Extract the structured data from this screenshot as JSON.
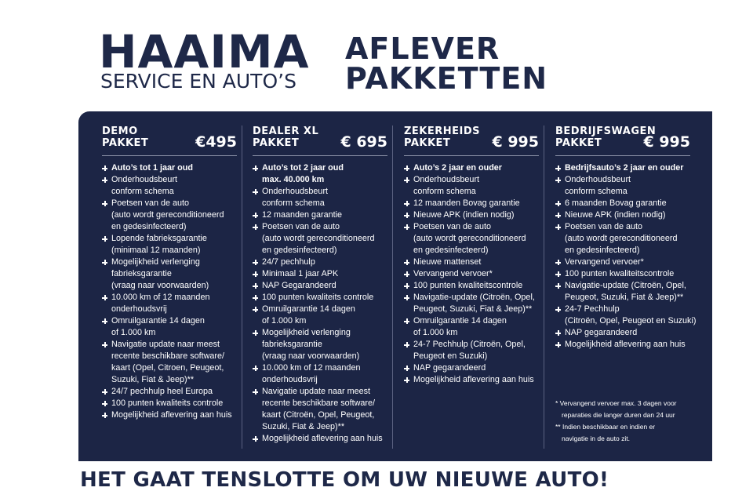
{
  "logo": {
    "name": "HAAIMA",
    "tagline": "SERVICE EN AUTO’S"
  },
  "title": [
    "AFLEVER",
    "PAKKETTEN"
  ],
  "columns": [
    {
      "name": [
        "DEMO",
        "PAKKET"
      ],
      "price": "€495",
      "highlight": [
        "Auto’s tot 1 jaar oud"
      ],
      "items": [
        [
          "Onderhoudsbeurt",
          "conform schema"
        ],
        [
          "Poetsen van de auto",
          "(auto wordt gereconditioneerd",
          "en gedesinfecteerd)"
        ],
        [
          "Lopende fabrieksgarantie",
          "(minimaal 12 maanden)"
        ],
        [
          "Mogelijkheid verlenging",
          "fabrieksgarantie",
          "(vraag naar voorwaarden)"
        ],
        [
          "10.000 km of 12 maanden",
          "onderhoudsvrij"
        ],
        [
          "Omruilgarantie 14 dagen",
          "of 1.000 km"
        ],
        [
          "Navigatie update naar meest",
          "recente beschikbare software/",
          "kaart (Opel, Citroen,  Peugeot,",
          "Suzuki, Fiat & Jeep)**"
        ],
        [
          "24/7 pechhulp heel Europa"
        ],
        [
          "100 punten kwaliteits controle"
        ],
        [
          "Mogelijkheid aflevering aan huis"
        ]
      ]
    },
    {
      "name": [
        "DEALER XL",
        "PAKKET"
      ],
      "price": "€ 695",
      "highlight": [
        "Auto’s tot 2 jaar oud",
        "max. 40.000 km"
      ],
      "items": [
        [
          "Onderhoudsbeurt",
          "conform schema"
        ],
        [
          "12 maanden garantie"
        ],
        [
          "Poetsen van de auto",
          "(auto wordt gereconditioneerd",
          "en gedesinfecteerd)"
        ],
        [
          "24/7 pechhulp"
        ],
        [
          "Minimaal 1 jaar APK"
        ],
        [
          "NAP Gegarandeerd"
        ],
        [
          "100 punten kwaliteits controle"
        ],
        [
          "Omruilgarantie 14 dagen",
          "of 1.000 km"
        ],
        [
          "Mogelijkheid verlenging",
          "fabrieksgarantie",
          "(vraag naar voorwaarden)"
        ],
        [
          "10.000 km of 12 maanden",
          "onderhoudsvrij"
        ],
        [
          "Navigatie update naar meest",
          "recente beschikbare software/",
          "kaart (Citroën, Opel, Peugeot,",
          "Suzuki, Fiat & Jeep)**"
        ],
        [
          "Mogelijkheid aflevering aan huis"
        ]
      ]
    },
    {
      "name": [
        "ZEKERHEIDS",
        "PAKKET"
      ],
      "price": "€ 995",
      "highlight": [
        "Auto’s 2 jaar en ouder"
      ],
      "items": [
        [
          "Onderhoudsbeurt",
          "conform schema"
        ],
        [
          "12 maanden Bovag garantie"
        ],
        [
          "Nieuwe APK (indien nodig)"
        ],
        [
          "Poetsen van de auto",
          "(auto wordt gereconditioneerd",
          "en gedesinfecteerd)"
        ],
        [
          "Nieuwe mattenset"
        ],
        [
          "Vervangend vervoer*"
        ],
        [
          "100 punten kwaliteitscontrole"
        ],
        [
          "Navigatie-update (Citroën, Opel,",
          "Peugeot, Suzuki, Fiat & Jeep)**"
        ],
        [
          "Omruilgarantie 14 dagen",
          "of 1.000 km"
        ],
        [
          "24-7 Pechhulp (Citroën, Opel,",
          "Peugeot en Suzuki)"
        ],
        [
          "NAP gegarandeerd"
        ],
        [
          "Mogelijkheid aflevering aan huis"
        ]
      ]
    },
    {
      "name": [
        "BEDRIJFSWAGEN",
        "PAKKET"
      ],
      "price": "€ 995",
      "highlight": [
        "Bedrijfsauto’s 2 jaar en ouder"
      ],
      "items": [
        [
          "Onderhoudsbeurt",
          "conform schema"
        ],
        [
          "6 maanden Bovag garantie"
        ],
        [
          "Nieuwe APK (indien nodig)"
        ],
        [
          "Poetsen van de auto",
          "(auto wordt gereconditioneerd",
          "en gedesinfecteerd)"
        ],
        [
          "Vervangend vervoer*"
        ],
        [
          "100 punten kwaliteitscontrole"
        ],
        [
          "Navigatie-update (Citroën, Opel,",
          "Peugeot, Suzuki, Fiat & Jeep)**"
        ],
        [
          "24-7 Pechhulp",
          "(Citroën, Opel, Peugeot en Suzuki)"
        ],
        [
          "NAP gegarandeerd"
        ],
        [
          "Mogelijkheid aflevering aan huis"
        ]
      ]
    }
  ],
  "notes": [
    [
      "* Vervangend vervoer max. 3 dagen voor",
      "reparaties die langer duren dan 24 uur"
    ],
    [
      "** Indien beschikbaar en indien er",
      "navigatie in de auto zit."
    ]
  ],
  "footer": "HET GAAT TENSLOTTE OM UW NIEUWE AUTO!"
}
